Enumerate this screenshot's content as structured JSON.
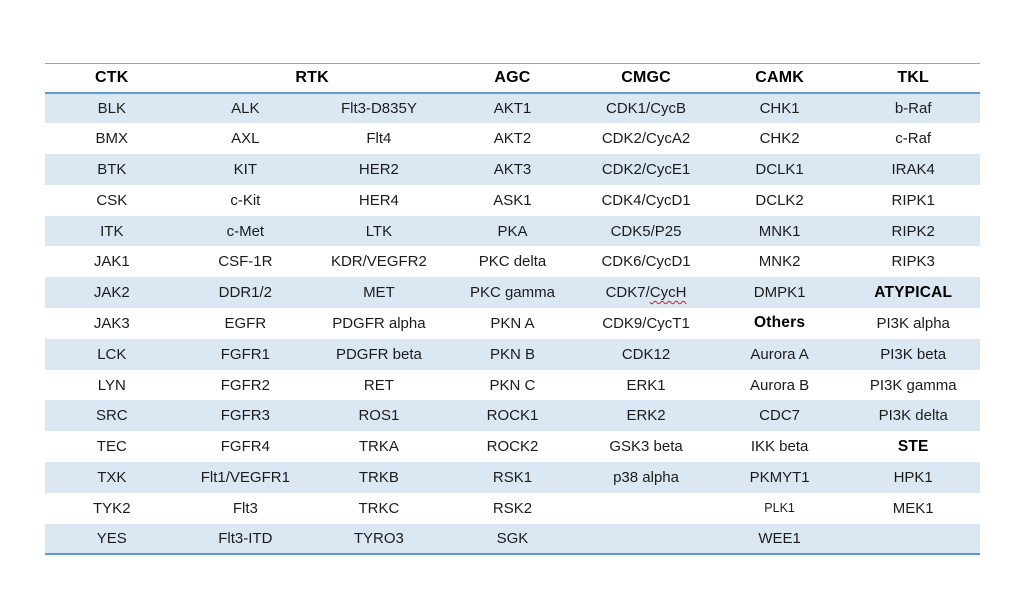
{
  "colors": {
    "background": "#ffffff",
    "accent_border": "#5b9bd5",
    "accent_border_light": "#79aed9",
    "stripe": "#dbe8f4",
    "header_text": "#000000",
    "body_text": "#1c1c1c",
    "spellcheck_underline": "#cc2222"
  },
  "table": {
    "column_groups": [
      {
        "label": "CTK",
        "span": 1
      },
      {
        "label": "RTK",
        "span": 2
      },
      {
        "label": "AGC",
        "span": 1
      },
      {
        "label": "CMGC",
        "span": 1
      },
      {
        "label": "CAMK",
        "span": 1
      },
      {
        "label": "TKL",
        "span": 1
      }
    ],
    "rows": [
      [
        "BLK",
        "ALK",
        "Flt3-D835Y",
        "AKT1",
        "CDK1/CycB",
        "CHK1",
        "b-Raf"
      ],
      [
        "BMX",
        "AXL",
        "Flt4",
        "AKT2",
        "CDK2/CycA2",
        "CHK2",
        "c-Raf"
      ],
      [
        "BTK",
        "KIT",
        "HER2",
        "AKT3",
        "CDK2/CycE1",
        "DCLK1",
        "IRAK4"
      ],
      [
        "CSK",
        "c-Kit",
        "HER4",
        "ASK1",
        "CDK4/CycD1",
        "DCLK2",
        "RIPK1"
      ],
      [
        "ITK",
        "c-Met",
        "LTK",
        "PKA",
        "CDK5/P25",
        "MNK1",
        "RIPK2"
      ],
      [
        "JAK1",
        "CSF-1R",
        "KDR/VEGFR2",
        "PKC delta",
        "CDK6/CycD1",
        "MNK2",
        "RIPK3"
      ],
      [
        "JAK2",
        "DDR1/2",
        "MET",
        "PKC gamma",
        {
          "prefix": "CDK7/",
          "squiggle": "CycH"
        },
        "DMPK1",
        {
          "text": "ATYPICAL",
          "bold": true
        }
      ],
      [
        "JAK3",
        "EGFR",
        "PDGFR alpha",
        "PKN A",
        "CDK9/CycT1",
        {
          "text": "Others",
          "bold": true
        },
        "PI3K alpha"
      ],
      [
        "LCK",
        "FGFR1",
        "PDGFR beta",
        "PKN B",
        "CDK12",
        "Aurora A",
        "PI3K beta"
      ],
      [
        "LYN",
        "FGFR2",
        "RET",
        "PKN C",
        "ERK1",
        "Aurora B",
        "PI3K gamma"
      ],
      [
        "SRC",
        "FGFR3",
        "ROS1",
        "ROCK1",
        "ERK2",
        "CDC7",
        "PI3K delta"
      ],
      [
        "TEC",
        "FGFR4",
        "TRKA",
        "ROCK2",
        "GSK3 beta",
        "IKK beta",
        {
          "text": "STE",
          "bold": true
        }
      ],
      [
        "TXK",
        "Flt1/VEGFR1",
        "TRKB",
        "RSK1",
        "p38 alpha",
        "PKMYT1",
        "HPK1"
      ],
      [
        "TYK2",
        "Flt3",
        "TRKC",
        "RSK2",
        "",
        {
          "text": "PLK1",
          "small": true
        },
        "MEK1"
      ],
      [
        "YES",
        "Flt3-ITD",
        "TYRO3",
        "SGK",
        "",
        "WEE1",
        ""
      ]
    ]
  }
}
